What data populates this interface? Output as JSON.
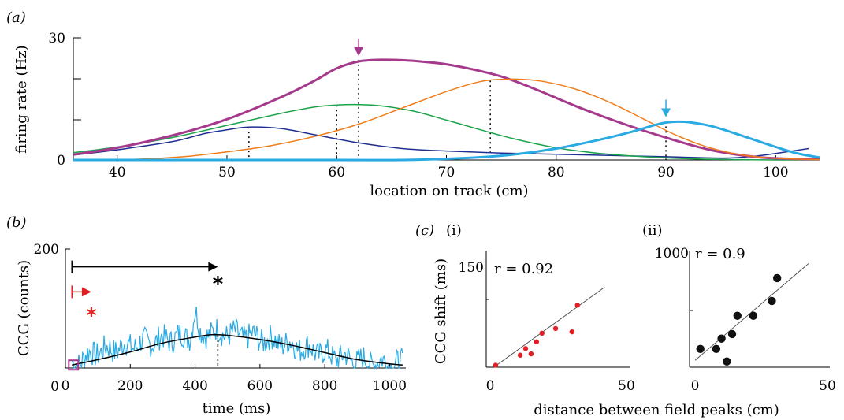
{
  "panels": {
    "a": {
      "label": "(a)"
    },
    "b": {
      "label": "(b)"
    },
    "c": {
      "label": "(c)",
      "i": "(i)",
      "ii": "(ii)",
      "shared_xlabel": "distance between field peaks (cm)"
    }
  },
  "chart_data": [
    {
      "type": "line",
      "xlabel": "location on track (cm)",
      "ylabel": "firing rate (Hz)",
      "xlim": [
        36,
        104
      ],
      "ylim": [
        0,
        30
      ],
      "xticks": [
        40,
        50,
        60,
        70,
        80,
        90,
        100
      ],
      "yticks": [
        0,
        30
      ],
      "grid": false,
      "series": [
        {
          "color": "#1f2f8f",
          "width": 1.5,
          "points": [
            [
              36,
              1.2
            ],
            [
              40,
              2.5
            ],
            [
              45,
              4.5
            ],
            [
              48,
              6.5
            ],
            [
              50,
              7.4
            ],
            [
              52,
              8.1
            ],
            [
              55,
              7.7
            ],
            [
              58,
              6.2
            ],
            [
              62,
              4.2
            ],
            [
              66,
              2.8
            ],
            [
              70,
              2.2
            ],
            [
              75,
              1.7
            ],
            [
              80,
              1.4
            ],
            [
              85,
              1.1
            ],
            [
              90,
              0.8
            ],
            [
              94,
              0.5
            ],
            [
              96,
              0.5
            ],
            [
              98,
              0.9
            ],
            [
              100,
              1.6
            ],
            [
              103,
              2.8
            ]
          ]
        },
        {
          "color": "#1aa34a",
          "width": 1.5,
          "points": [
            [
              36,
              1.8
            ],
            [
              40,
              3.2
            ],
            [
              45,
              5.5
            ],
            [
              50,
              8.5
            ],
            [
              55,
              11.5
            ],
            [
              58,
              13.0
            ],
            [
              60,
              13.5
            ],
            [
              62,
              13.6
            ],
            [
              64,
              13.3
            ],
            [
              67,
              12.0
            ],
            [
              70,
              9.8
            ],
            [
              73,
              7.5
            ],
            [
              76,
              5.3
            ],
            [
              80,
              3.0
            ],
            [
              84,
              1.6
            ],
            [
              88,
              0.8
            ],
            [
              92,
              0.3
            ],
            [
              96,
              0.1
            ],
            [
              100,
              0.0
            ],
            [
              104,
              0.0
            ]
          ]
        },
        {
          "color": "#a53a8c",
          "width": 3,
          "points": [
            [
              36,
              1.3
            ],
            [
              40,
              3.0
            ],
            [
              45,
              6.0
            ],
            [
              50,
              10.0
            ],
            [
              55,
              15.5
            ],
            [
              58,
              19.5
            ],
            [
              60,
              22.5
            ],
            [
              62,
              24.2
            ],
            [
              64,
              24.6
            ],
            [
              66,
              24.5
            ],
            [
              68,
              24.1
            ],
            [
              70,
              23.5
            ],
            [
              72,
              22.5
            ],
            [
              75,
              20.5
            ],
            [
              78,
              17.5
            ],
            [
              82,
              13.0
            ],
            [
              86,
              9.0
            ],
            [
              90,
              5.5
            ],
            [
              94,
              2.5
            ],
            [
              98,
              0.8
            ],
            [
              101,
              0.3
            ],
            [
              104,
              0.2
            ]
          ]
        },
        {
          "color": "#ee7d1a",
          "width": 1.5,
          "points": [
            [
              36,
              0.0
            ],
            [
              42,
              0.2
            ],
            [
              46,
              0.8
            ],
            [
              50,
              2.0
            ],
            [
              54,
              3.5
            ],
            [
              58,
              5.8
            ],
            [
              62,
              8.8
            ],
            [
              66,
              12.8
            ],
            [
              70,
              16.8
            ],
            [
              73,
              19.2
            ],
            [
              75,
              19.8
            ],
            [
              77,
              19.8
            ],
            [
              79,
              19.2
            ],
            [
              82,
              17.2
            ],
            [
              85,
              14.0
            ],
            [
              88,
              10.0
            ],
            [
              91,
              6.0
            ],
            [
              94,
              3.0
            ],
            [
              97,
              1.2
            ],
            [
              100,
              0.4
            ],
            [
              104,
              0.1
            ]
          ]
        },
        {
          "color": "#2aaae2",
          "width": 3,
          "points": [
            [
              36,
              0.0
            ],
            [
              60,
              0.0
            ],
            [
              66,
              0.0
            ],
            [
              72,
              0.5
            ],
            [
              76,
              1.3
            ],
            [
              80,
              2.8
            ],
            [
              84,
              5.0
            ],
            [
              87,
              7.0
            ],
            [
              89,
              8.6
            ],
            [
              90,
              9.2
            ],
            [
              91,
              9.4
            ],
            [
              92,
              9.3
            ],
            [
              94,
              8.4
            ],
            [
              96,
              6.8
            ],
            [
              98,
              5.0
            ],
            [
              100,
              3.2
            ],
            [
              102,
              1.6
            ],
            [
              104,
              0.6
            ]
          ]
        }
      ],
      "field_peaks": [
        52,
        60,
        62,
        74,
        90
      ],
      "peak_markers": [
        {
          "x": 52,
          "y": 8.1
        },
        {
          "x": 60,
          "y": 13.5
        },
        {
          "x": 62,
          "y": 24.6
        },
        {
          "x": 74,
          "y": 19.5
        },
        {
          "x": 90,
          "y": 9.4
        }
      ],
      "arrows": [
        {
          "x": 62,
          "color": "#a53a8c"
        },
        {
          "x": 90,
          "color": "#2aaae2"
        }
      ]
    },
    {
      "type": "line",
      "xlabel": "time (ms)",
      "ylabel": "CCG (counts)",
      "xlim": [
        0,
        1050
      ],
      "ylim": [
        0,
        200
      ],
      "xticks": [
        0,
        200,
        400,
        600,
        800,
        1000
      ],
      "yticks": [
        200
      ],
      "series": [
        {
          "color": "#2aaae2",
          "kind": "noisy",
          "envelope": [
            [
              20,
              5
            ],
            [
              60,
              18
            ],
            [
              100,
              28
            ],
            [
              150,
              32
            ],
            [
              200,
              38
            ],
            [
              250,
              43
            ],
            [
              300,
              48
            ],
            [
              350,
              52
            ],
            [
              400,
              56
            ],
            [
              450,
              60
            ],
            [
              500,
              58
            ],
            [
              550,
              55
            ],
            [
              600,
              50
            ],
            [
              650,
              45
            ],
            [
              700,
              38
            ],
            [
              750,
              32
            ],
            [
              800,
              24
            ],
            [
              850,
              18
            ],
            [
              900,
              13
            ],
            [
              950,
              10
            ],
            [
              1000,
              8
            ],
            [
              1040,
              6
            ]
          ],
          "noise": 22
        },
        {
          "color": "#000000",
          "points": [
            [
              20,
              5
            ],
            [
              100,
              14
            ],
            [
              200,
              27
            ],
            [
              300,
              42
            ],
            [
              400,
              52
            ],
            [
              450,
              56
            ],
            [
              500,
              55
            ],
            [
              600,
              48
            ],
            [
              700,
              38
            ],
            [
              800,
              26
            ],
            [
              900,
              14
            ],
            [
              1000,
              7
            ],
            [
              1040,
              5
            ]
          ]
        }
      ],
      "vline": 470,
      "arrows": [
        {
          "color": "#000000",
          "from": 20,
          "to": 470,
          "y": 170
        },
        {
          "color": "#e31e24",
          "from": 20,
          "to": 80,
          "y": 128
        }
      ],
      "stars": [
        {
          "color": "#000000",
          "x": 470,
          "y": 143
        },
        {
          "color": "#e31e24",
          "x": 80,
          "y": 90
        }
      ],
      "start_marker": {
        "x": 25,
        "y": 5
      }
    },
    {
      "type": "scatter",
      "ylabel": "CCG shift (ms)",
      "xlim": [
        0,
        50
      ],
      "ylim": [
        0,
        150
      ],
      "xticks": [
        0,
        50
      ],
      "yticks": [
        150
      ],
      "annotation": "r = 0.92",
      "color": "#e31e24",
      "points": [
        [
          2,
          3
        ],
        [
          11,
          18
        ],
        [
          13,
          28
        ],
        [
          15,
          20
        ],
        [
          17,
          38
        ],
        [
          19,
          51
        ],
        [
          24,
          58
        ],
        [
          30,
          53
        ],
        [
          32,
          93
        ]
      ],
      "fit": [
        [
          2,
          2
        ],
        [
          42,
          120
        ]
      ]
    },
    {
      "type": "scatter",
      "xlim": [
        0,
        50
      ],
      "ylim": [
        0,
        1000
      ],
      "xticks": [
        0,
        50
      ],
      "yticks": [
        1000
      ],
      "annotation": "r = 0.9",
      "color": "#111111",
      "points": [
        [
          2,
          160
        ],
        [
          8,
          160
        ],
        [
          10,
          250
        ],
        [
          12,
          50
        ],
        [
          14,
          290
        ],
        [
          16,
          450
        ],
        [
          22,
          450
        ],
        [
          29,
          580
        ],
        [
          31,
          780
        ]
      ],
      "fit": [
        [
          0,
          60
        ],
        [
          43,
          910
        ]
      ]
    }
  ]
}
